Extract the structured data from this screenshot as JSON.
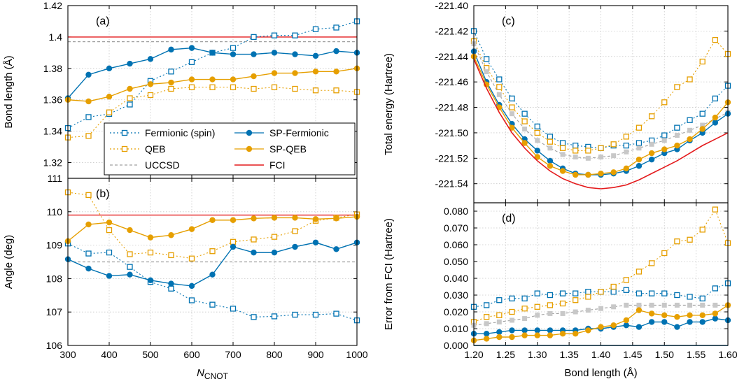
{
  "colors": {
    "blue": "#0072b2",
    "orange": "#e69f00",
    "gray": "#a0a0a0",
    "red": "#e41a1c",
    "grid": "#c8c8c8"
  },
  "chart_data": [
    {
      "id": "a",
      "type": "line",
      "panel_label": "(a)",
      "xlabel": "",
      "ylabel": "Bond length (Å)",
      "xlim": [
        300,
        1000
      ],
      "ylim": [
        1.31,
        1.42
      ],
      "yticks": [
        "1.32",
        "1.34",
        "1.36",
        "1.38",
        "1.4",
        "1.42"
      ],
      "ytick_values": [
        1.32,
        1.34,
        1.36,
        1.38,
        1.4,
        1.42
      ],
      "xticks": [
        300,
        400,
        500,
        600,
        700,
        800,
        900,
        1000
      ],
      "show_xtick_labels": false,
      "grid": true,
      "legend": "bottom",
      "x": [
        300,
        350,
        400,
        450,
        500,
        550,
        600,
        650,
        700,
        750,
        800,
        850,
        900,
        950,
        1000
      ],
      "series": [
        {
          "name": "Fermionic (spin)",
          "style": "fermionic-spin",
          "values": [
            1.342,
            1.349,
            1.351,
            1.357,
            1.372,
            1.378,
            1.384,
            1.39,
            1.393,
            1.4,
            1.401,
            1.401,
            1.405,
            1.406,
            1.41
          ]
        },
        {
          "name": "QEB",
          "style": "qeb",
          "values": [
            1.336,
            1.337,
            1.352,
            1.361,
            1.363,
            1.367,
            1.368,
            1.368,
            1.368,
            1.367,
            1.368,
            1.367,
            1.366,
            1.366,
            1.365
          ]
        },
        {
          "name": "SP-Fermionic",
          "style": "sp-fermionic",
          "values": [
            1.361,
            1.376,
            1.38,
            1.383,
            1.386,
            1.392,
            1.393,
            1.39,
            1.389,
            1.389,
            1.39,
            1.389,
            1.388,
            1.391,
            1.39
          ]
        },
        {
          "name": "SP-QEB",
          "style": "sp-qeb",
          "values": [
            1.36,
            1.359,
            1.362,
            1.367,
            1.37,
            1.371,
            1.373,
            1.373,
            1.373,
            1.375,
            1.377,
            1.377,
            1.378,
            1.378,
            1.38
          ]
        }
      ],
      "hlines": [
        {
          "name": "UCCSD",
          "style": "uccsd",
          "value": 1.397
        },
        {
          "name": "FCI",
          "style": "fci",
          "value": 1.4
        }
      ]
    },
    {
      "id": "b",
      "type": "line",
      "panel_label": "(b)",
      "xlabel": "N",
      "xlabel_sub": "CNOT",
      "ylabel": "Angle (deg)",
      "xlim": [
        300,
        1000
      ],
      "ylim": [
        106,
        111
      ],
      "yticks": [
        "106",
        "107",
        "108",
        "109",
        "110",
        "111"
      ],
      "ytick_values": [
        106,
        107,
        108,
        109,
        110,
        111
      ],
      "xticks": [
        "300",
        "400",
        "500",
        "600",
        "700",
        "800",
        "900",
        "1000"
      ],
      "xtick_values": [
        300,
        400,
        500,
        600,
        700,
        800,
        900,
        1000
      ],
      "show_xtick_labels": true,
      "grid": true,
      "x": [
        300,
        350,
        400,
        450,
        500,
        550,
        600,
        650,
        700,
        750,
        800,
        850,
        900,
        950,
        1000
      ],
      "series": [
        {
          "name": "Fermionic (spin)",
          "style": "fermionic-spin",
          "values": [
            109.05,
            108.75,
            108.78,
            108.35,
            107.9,
            107.7,
            107.35,
            107.22,
            107.1,
            106.85,
            106.87,
            106.92,
            106.92,
            106.95,
            106.75
          ]
        },
        {
          "name": "QEB",
          "style": "qeb",
          "values": [
            110.58,
            110.5,
            109.45,
            108.73,
            108.78,
            108.7,
            108.6,
            108.82,
            109.1,
            109.17,
            109.25,
            109.42,
            109.73,
            109.82,
            109.92
          ]
        },
        {
          "name": "SP-Fermionic",
          "style": "sp-fermionic",
          "values": [
            108.58,
            108.3,
            108.08,
            108.12,
            107.95,
            107.85,
            107.78,
            108.12,
            108.95,
            108.78,
            108.78,
            108.95,
            109.08,
            108.88,
            109.08
          ]
        },
        {
          "name": "SP-QEB",
          "style": "sp-qeb",
          "values": [
            109.12,
            109.62,
            109.68,
            109.45,
            109.23,
            109.3,
            109.48,
            109.75,
            109.75,
            109.8,
            109.82,
            109.82,
            109.78,
            109.8,
            109.85
          ]
        }
      ],
      "hlines": [
        {
          "name": "UCCSD",
          "style": "uccsd",
          "value": 108.5
        },
        {
          "name": "FCI",
          "style": "fci",
          "value": 109.9
        }
      ]
    },
    {
      "id": "c",
      "type": "line",
      "panel_label": "(c)",
      "xlabel": "",
      "ylabel": "Total energy (Hartree)",
      "xlim": [
        1.2,
        1.6
      ],
      "ylim": [
        -221.555,
        -221.4
      ],
      "yticks": [
        "-221.54",
        "-221.52",
        "-221.50",
        "-221.48",
        "-221.46",
        "-221.44",
        "-221.42",
        "-221.40"
      ],
      "ytick_values": [
        -221.54,
        -221.52,
        -221.5,
        -221.48,
        -221.46,
        -221.44,
        -221.42,
        -221.4
      ],
      "xticks": [
        1.2,
        1.25,
        1.3,
        1.35,
        1.4,
        1.45,
        1.5,
        1.55,
        1.6
      ],
      "show_xtick_labels": false,
      "grid": true,
      "x": [
        1.2,
        1.22,
        1.24,
        1.26,
        1.28,
        1.3,
        1.32,
        1.34,
        1.36,
        1.38,
        1.4,
        1.42,
        1.44,
        1.46,
        1.48,
        1.5,
        1.52,
        1.54,
        1.56,
        1.58,
        1.6
      ],
      "series": [
        {
          "name": "Fermionic (spin)",
          "style": "fermionic-spin",
          "values": [
            -221.42,
            -221.442,
            -221.458,
            -221.473,
            -221.485,
            -221.495,
            -221.503,
            -221.508,
            -221.51,
            -221.511,
            -221.512,
            -221.51,
            -221.51,
            -221.508,
            -221.506,
            -221.502,
            -221.496,
            -221.49,
            -221.485,
            -221.473,
            -221.463
          ]
        },
        {
          "name": "QEB",
          "style": "qeb",
          "values": [
            -221.428,
            -221.449,
            -221.464,
            -221.48,
            -221.491,
            -221.5,
            -221.507,
            -221.512,
            -221.514,
            -221.514,
            -221.512,
            -221.509,
            -221.503,
            -221.496,
            -221.487,
            -221.476,
            -221.464,
            -221.458,
            -221.444,
            -221.427,
            -221.438
          ]
        },
        {
          "name": "UCCSD",
          "style": "uccsd-markers",
          "values": [
            -221.43,
            -221.452,
            -221.47,
            -221.485,
            -221.497,
            -221.506,
            -221.512,
            -221.517,
            -221.519,
            -221.52,
            -221.519,
            -221.518,
            -221.515,
            -221.512,
            -221.509,
            -221.506,
            -221.502,
            -221.498,
            -221.494,
            -221.489,
            -221.484
          ]
        },
        {
          "name": "SP-Fermionic",
          "style": "sp-fermionic",
          "values": [
            -221.436,
            -221.46,
            -221.478,
            -221.493,
            -221.505,
            -221.514,
            -221.522,
            -221.528,
            -221.532,
            -221.533,
            -221.533,
            -221.532,
            -221.53,
            -221.526,
            -221.521,
            -221.516,
            -221.513,
            -221.506,
            -221.5,
            -221.492,
            -221.485
          ]
        },
        {
          "name": "SP-QEB",
          "style": "sp-qeb",
          "values": [
            -221.44,
            -221.462,
            -221.48,
            -221.496,
            -221.508,
            -221.519,
            -221.526,
            -221.53,
            -221.533,
            -221.533,
            -221.532,
            -221.531,
            -221.528,
            -221.521,
            -221.516,
            -221.513,
            -221.51,
            -221.505,
            -221.497,
            -221.488,
            -221.476
          ]
        },
        {
          "name": "FCI",
          "style": "fci",
          "values": [
            -221.442,
            -221.465,
            -221.484,
            -221.5,
            -221.512,
            -221.522,
            -221.53,
            -221.536,
            -221.54,
            -221.543,
            -221.544,
            -221.543,
            -221.541,
            -221.537,
            -221.532,
            -221.527,
            -221.522,
            -221.516,
            -221.51,
            -221.505,
            -221.5
          ]
        }
      ]
    },
    {
      "id": "d",
      "type": "line",
      "panel_label": "(d)",
      "xlabel": "Bond length (Å)",
      "ylabel": "Error from FCI (Hartree)",
      "xlim": [
        1.2,
        1.6
      ],
      "ylim": [
        0,
        0.085
      ],
      "yticks": [
        "0.000",
        "0.010",
        "0.020",
        "0.030",
        "0.040",
        "0.050",
        "0.060",
        "0.070",
        "0.080"
      ],
      "ytick_values": [
        0,
        0.01,
        0.02,
        0.03,
        0.04,
        0.05,
        0.06,
        0.07,
        0.08
      ],
      "xticks": [
        "1.20",
        "1.25",
        "1.30",
        "1.35",
        "1.40",
        "1.45",
        "1.50",
        "1.55",
        "1.60"
      ],
      "xtick_values": [
        1.2,
        1.25,
        1.3,
        1.35,
        1.4,
        1.45,
        1.5,
        1.55,
        1.6
      ],
      "show_xtick_labels": true,
      "grid": true,
      "x": [
        1.2,
        1.22,
        1.24,
        1.26,
        1.28,
        1.3,
        1.32,
        1.34,
        1.36,
        1.38,
        1.4,
        1.42,
        1.44,
        1.46,
        1.48,
        1.5,
        1.52,
        1.54,
        1.56,
        1.58,
        1.6
      ],
      "series": [
        {
          "name": "Fermionic (spin)",
          "style": "fermionic-spin",
          "values": [
            0.023,
            0.024,
            0.027,
            0.028,
            0.028,
            0.031,
            0.03,
            0.031,
            0.031,
            0.032,
            0.032,
            0.032,
            0.033,
            0.031,
            0.031,
            0.031,
            0.03,
            0.029,
            0.028,
            0.034,
            0.037
          ]
        },
        {
          "name": "QEB",
          "style": "qeb",
          "values": [
            0.014,
            0.017,
            0.018,
            0.02,
            0.022,
            0.023,
            0.024,
            0.025,
            0.027,
            0.029,
            0.032,
            0.035,
            0.039,
            0.044,
            0.049,
            0.055,
            0.062,
            0.063,
            0.069,
            0.081,
            0.061
          ]
        },
        {
          "name": "UCCSD",
          "style": "uccsd-markers",
          "values": [
            0.012,
            0.013,
            0.014,
            0.015,
            0.016,
            0.018,
            0.019,
            0.019,
            0.02,
            0.021,
            0.022,
            0.023,
            0.024,
            0.024,
            0.024,
            0.024,
            0.024,
            0.024,
            0.024,
            0.024,
            0.024
          ]
        },
        {
          "name": "SP-Fermionic",
          "style": "sp-fermionic",
          "values": [
            0.007,
            0.007,
            0.008,
            0.009,
            0.009,
            0.009,
            0.009,
            0.009,
            0.009,
            0.01,
            0.01,
            0.011,
            0.012,
            0.011,
            0.014,
            0.014,
            0.011,
            0.014,
            0.014,
            0.016,
            0.015
          ]
        },
        {
          "name": "SP-QEB",
          "style": "sp-qeb",
          "values": [
            0.003,
            0.004,
            0.005,
            0.005,
            0.006,
            0.006,
            0.006,
            0.007,
            0.007,
            0.009,
            0.011,
            0.012,
            0.015,
            0.021,
            0.019,
            0.018,
            0.017,
            0.018,
            0.018,
            0.019,
            0.024
          ]
        },
        {
          "name": "FCI",
          "style": "fci-zero",
          "values": [
            0,
            0,
            0,
            0,
            0,
            0,
            0,
            0,
            0,
            0,
            0,
            0,
            0,
            0,
            0,
            0,
            0,
            0,
            0,
            0,
            0
          ]
        }
      ]
    }
  ],
  "legend": {
    "items": [
      {
        "label": "Fermionic (spin)",
        "style": "fermionic-spin"
      },
      {
        "label": "SP-Fermionic",
        "style": "sp-fermionic"
      },
      {
        "label": "QEB",
        "style": "qeb"
      },
      {
        "label": "SP-QEB",
        "style": "sp-qeb"
      },
      {
        "label": "UCCSD",
        "style": "uccsd"
      },
      {
        "label": "FCI",
        "style": "fci"
      }
    ]
  }
}
